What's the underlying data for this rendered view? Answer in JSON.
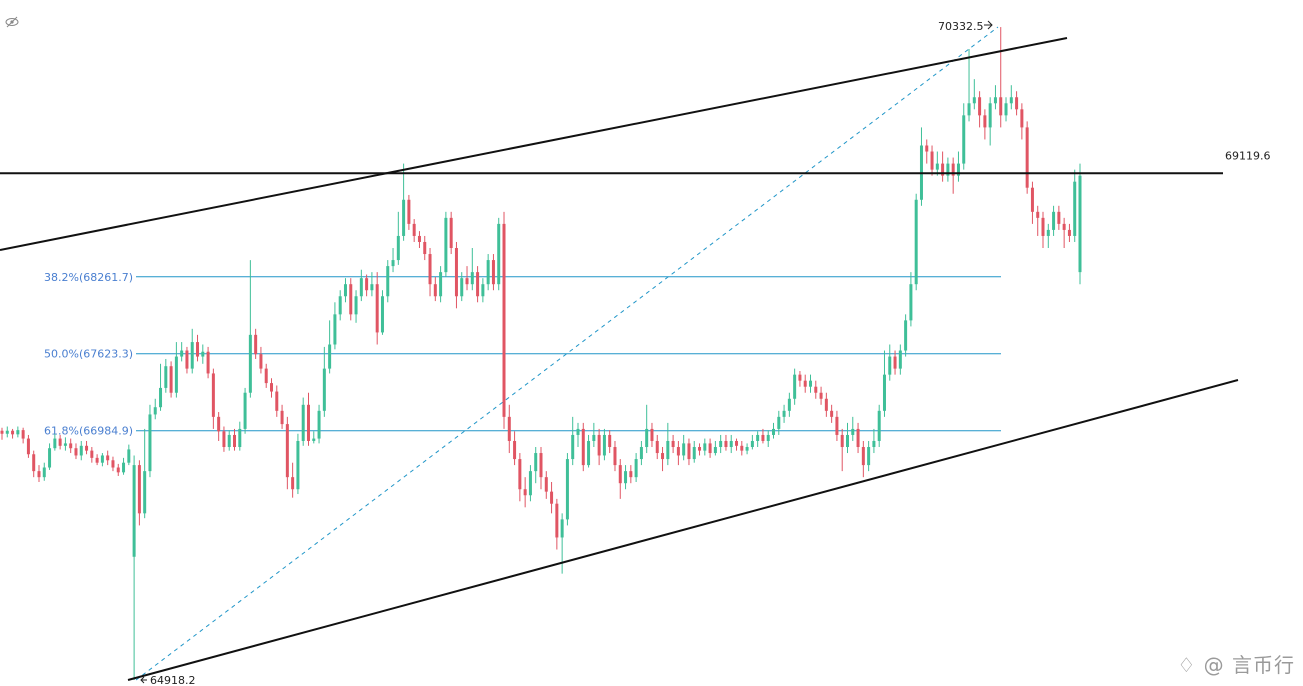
{
  "chart_data": {
    "type": "candlestick",
    "y_axis": {
      "min": 64918.2,
      "max": 70332.5,
      "unit": "USD"
    },
    "colors": {
      "up": "#3fbf98",
      "down": "#e05563",
      "fib": "#2196c8",
      "trend": "#111111",
      "dashed": "#2196c8"
    },
    "annotations": {
      "high_label": "70332.5",
      "low_label": "64918.2",
      "horizontal_level": "69119.6"
    },
    "horizontal_levels": [
      69119.6
    ],
    "fib_levels": [
      {
        "label": "38.2%(68261.7)",
        "ratio": 0.382,
        "price": 68261.7
      },
      {
        "label": "50.0%(67623.3)",
        "ratio": 0.5,
        "price": 67623.3
      },
      {
        "label": "61.8%(66984.9)",
        "ratio": 0.618,
        "price": 66984.9
      }
    ],
    "candles": [
      [
        66985,
        66960,
        67010,
        66910
      ],
      [
        66960,
        66985,
        67020,
        66930
      ],
      [
        66985,
        66955,
        67000,
        66920
      ],
      [
        66955,
        66990,
        67020,
        66930
      ],
      [
        66990,
        66920,
        67010,
        66880
      ],
      [
        66920,
        66790,
        66950,
        66760
      ],
      [
        66790,
        66650,
        66820,
        66600
      ],
      [
        66650,
        66600,
        66700,
        66560
      ],
      [
        66600,
        66680,
        66720,
        66570
      ],
      [
        66680,
        66840,
        66880,
        66660
      ],
      [
        66840,
        66920,
        66960,
        66820
      ],
      [
        66920,
        66860,
        66950,
        66830
      ],
      [
        66860,
        66880,
        66930,
        66820
      ],
      [
        66880,
        66840,
        66920,
        66800
      ],
      [
        66840,
        66780,
        66880,
        66750
      ],
      [
        66780,
        66860,
        66900,
        66740
      ],
      [
        66860,
        66820,
        66900,
        66790
      ],
      [
        66820,
        66760,
        66850,
        66720
      ],
      [
        66760,
        66720,
        66790,
        66700
      ],
      [
        66720,
        66780,
        66800,
        66690
      ],
      [
        66780,
        66740,
        66820,
        66700
      ],
      [
        66740,
        66680,
        66770,
        66650
      ],
      [
        66680,
        66640,
        66710,
        66610
      ],
      [
        66640,
        66720,
        66760,
        66620
      ],
      [
        66720,
        66830,
        66870,
        66700
      ],
      [
        65940,
        66700,
        66780,
        64918
      ],
      [
        66700,
        66300,
        66740,
        66200
      ],
      [
        66300,
        66650,
        67000,
        66260
      ],
      [
        66650,
        67120,
        67200,
        66600
      ],
      [
        67120,
        67180,
        67250,
        67080
      ],
      [
        67180,
        67340,
        67540,
        67150
      ],
      [
        67340,
        67520,
        67580,
        67300
      ],
      [
        67520,
        67300,
        67560,
        67260
      ],
      [
        67300,
        67600,
        67720,
        67260
      ],
      [
        67600,
        67650,
        67720,
        67560
      ],
      [
        67650,
        67500,
        67680,
        67460
      ],
      [
        67500,
        67720,
        67830,
        67460
      ],
      [
        67720,
        67600,
        67780,
        67560
      ],
      [
        67600,
        67640,
        67700,
        67540
      ],
      [
        67640,
        67460,
        67680,
        67420
      ],
      [
        67460,
        67100,
        67500,
        67000
      ],
      [
        67100,
        66980,
        67140,
        66900
      ],
      [
        66980,
        66850,
        67020,
        66810
      ],
      [
        66850,
        66950,
        66990,
        66820
      ],
      [
        66950,
        66850,
        67000,
        66820
      ],
      [
        66850,
        67000,
        67060,
        66820
      ],
      [
        67000,
        67300,
        67340,
        66960
      ],
      [
        67300,
        67780,
        68400,
        67260
      ],
      [
        67780,
        67620,
        67830,
        67580
      ],
      [
        67620,
        67500,
        67680,
        67460
      ],
      [
        67500,
        67380,
        67540,
        67340
      ],
      [
        67380,
        67310,
        67420,
        67260
      ],
      [
        67310,
        67150,
        67360,
        67100
      ],
      [
        67150,
        67040,
        67200,
        67000
      ],
      [
        67040,
        66600,
        67100,
        66500
      ],
      [
        66600,
        66500,
        66720,
        66430
      ],
      [
        66500,
        66900,
        66960,
        66460
      ],
      [
        66900,
        67200,
        67260,
        66860
      ],
      [
        67200,
        66900,
        67300,
        66860
      ],
      [
        66900,
        66920,
        66980,
        66880
      ],
      [
        66920,
        67150,
        67200,
        66880
      ],
      [
        67150,
        67500,
        67680,
        67100
      ],
      [
        67500,
        67700,
        67900,
        67460
      ],
      [
        67700,
        67950,
        68050,
        67660
      ],
      [
        67950,
        68100,
        68150,
        67900
      ],
      [
        68100,
        68200,
        68250,
        68050
      ],
      [
        68200,
        67950,
        68250,
        67900
      ],
      [
        67950,
        68100,
        68150,
        67880
      ],
      [
        68100,
        68250,
        68320,
        68060
      ],
      [
        68250,
        68150,
        68280,
        68100
      ],
      [
        68150,
        68200,
        68300,
        68100
      ],
      [
        68200,
        67800,
        68300,
        67700
      ],
      [
        67800,
        68100,
        68150,
        67780
      ],
      [
        68100,
        68350,
        68400,
        68050
      ],
      [
        68350,
        68400,
        68500,
        68300
      ],
      [
        68400,
        68600,
        68800,
        68360
      ],
      [
        68600,
        68900,
        69200,
        68560
      ],
      [
        68900,
        68700,
        68940,
        68650
      ],
      [
        68700,
        68600,
        68740,
        68550
      ],
      [
        68600,
        68550,
        68640,
        68500
      ],
      [
        68550,
        68450,
        68600,
        68400
      ],
      [
        68450,
        68200,
        68500,
        68100
      ],
      [
        68200,
        68100,
        68260,
        68060
      ],
      [
        68100,
        68300,
        68350,
        68050
      ],
      [
        68300,
        68750,
        68800,
        68260
      ],
      [
        68750,
        68500,
        68800,
        68450
      ],
      [
        68500,
        68100,
        68550,
        68000
      ],
      [
        68100,
        68250,
        68300,
        68060
      ],
      [
        68250,
        68200,
        68350,
        68150
      ],
      [
        68200,
        68300,
        68500,
        68150
      ],
      [
        68300,
        68100,
        68350,
        68050
      ],
      [
        68100,
        68200,
        68250,
        68050
      ],
      [
        68200,
        68400,
        68450,
        68150
      ],
      [
        68400,
        68200,
        68450,
        68150
      ],
      [
        68200,
        68700,
        68750,
        68150
      ],
      [
        68700,
        67100,
        68800,
        67000
      ],
      [
        67100,
        66900,
        67200,
        66800
      ],
      [
        66900,
        66750,
        66980,
        66700
      ],
      [
        66750,
        66500,
        66800,
        66400
      ],
      [
        66500,
        66450,
        66600,
        66350
      ],
      [
        66450,
        66650,
        66700,
        66400
      ],
      [
        66650,
        66800,
        66850,
        66550
      ],
      [
        66800,
        66600,
        66850,
        66500
      ],
      [
        66600,
        66480,
        66650,
        66420
      ],
      [
        66480,
        66380,
        66560,
        66300
      ],
      [
        66380,
        66100,
        66420,
        66000
      ],
      [
        66100,
        66250,
        66300,
        65800
      ],
      [
        66250,
        66750,
        66800,
        66200
      ],
      [
        66750,
        66950,
        67100,
        66700
      ],
      [
        66950,
        67000,
        67050,
        66850
      ],
      [
        67000,
        66700,
        67050,
        66650
      ],
      [
        66700,
        66900,
        66950,
        66680
      ],
      [
        66900,
        66950,
        67050,
        66850
      ],
      [
        66950,
        66780,
        67000,
        66700
      ],
      [
        66780,
        66950,
        67000,
        66740
      ],
      [
        66950,
        66850,
        66990,
        66800
      ],
      [
        66850,
        66700,
        66900,
        66650
      ],
      [
        66700,
        66550,
        66750,
        66420
      ],
      [
        66550,
        66650,
        66700,
        66500
      ],
      [
        66650,
        66600,
        66700,
        66550
      ],
      [
        66600,
        66750,
        66800,
        66560
      ],
      [
        66750,
        66850,
        66900,
        66700
      ],
      [
        66850,
        67000,
        67200,
        66800
      ],
      [
        67000,
        66900,
        67050,
        66850
      ],
      [
        66900,
        66800,
        66950,
        66750
      ],
      [
        66800,
        66750,
        66850,
        66650
      ],
      [
        66750,
        66900,
        67050,
        66700
      ],
      [
        66900,
        66850,
        66950,
        66800
      ],
      [
        66850,
        66780,
        66900,
        66700
      ],
      [
        66780,
        66880,
        66950,
        66740
      ],
      [
        66880,
        66750,
        66920,
        66700
      ],
      [
        66750,
        66850,
        66900,
        66720
      ],
      [
        66850,
        66820,
        66880,
        66780
      ],
      [
        66820,
        66880,
        66920,
        66780
      ],
      [
        66880,
        66800,
        66920,
        66760
      ],
      [
        66800,
        66850,
        66900,
        66780
      ],
      [
        66850,
        66900,
        66950,
        66800
      ],
      [
        66900,
        66850,
        66950,
        66820
      ],
      [
        66850,
        66900,
        66950,
        66800
      ],
      [
        66900,
        66860,
        66920,
        66820
      ],
      [
        66860,
        66820,
        66900,
        66780
      ],
      [
        66820,
        66850,
        66880,
        66790
      ],
      [
        66850,
        66900,
        66950,
        66830
      ],
      [
        66900,
        66950,
        66980,
        66850
      ],
      [
        66950,
        66900,
        67000,
        66880
      ],
      [
        66900,
        66950,
        66990,
        66850
      ],
      [
        66950,
        67000,
        67050,
        66920
      ],
      [
        67000,
        67100,
        67150,
        66950
      ],
      [
        67100,
        67150,
        67200,
        67050
      ],
      [
        67150,
        67250,
        67300,
        67100
      ],
      [
        67250,
        67450,
        67500,
        67200
      ],
      [
        67450,
        67400,
        67480,
        67350
      ],
      [
        67400,
        67350,
        67450,
        67300
      ],
      [
        67350,
        67400,
        67450,
        67300
      ],
      [
        67350,
        67300,
        67400,
        67250
      ],
      [
        67300,
        67250,
        67350,
        67200
      ],
      [
        67250,
        67150,
        67300,
        67100
      ],
      [
        67150,
        67100,
        67200,
        67050
      ],
      [
        67100,
        66950,
        67150,
        66900
      ],
      [
        66950,
        66850,
        67000,
        66650
      ],
      [
        66850,
        66950,
        67050,
        66800
      ],
      [
        66950,
        67000,
        67100,
        66900
      ],
      [
        67000,
        66850,
        67050,
        66800
      ],
      [
        66850,
        66700,
        66900,
        66600
      ],
      [
        66700,
        66850,
        66900,
        66650
      ],
      [
        66850,
        66900,
        67000,
        66800
      ],
      [
        66900,
        67150,
        67200,
        66850
      ],
      [
        67150,
        67450,
        67650,
        67100
      ],
      [
        67450,
        67600,
        67700,
        67400
      ],
      [
        67600,
        67500,
        67650,
        67450
      ],
      [
        67500,
        67650,
        67700,
        67450
      ],
      [
        67650,
        67900,
        67950,
        67600
      ],
      [
        67900,
        68200,
        68300,
        67850
      ],
      [
        68200,
        68900,
        68950,
        68150
      ],
      [
        68900,
        69350,
        69500,
        68850
      ],
      [
        69350,
        69300,
        69400,
        69200
      ],
      [
        69300,
        69150,
        69350,
        69100
      ],
      [
        69150,
        69200,
        69300,
        69100
      ],
      [
        69200,
        69100,
        69300,
        69050
      ],
      [
        69100,
        69200,
        69250,
        69050
      ],
      [
        69200,
        69100,
        69250,
        68950
      ],
      [
        69100,
        69200,
        69300,
        69050
      ],
      [
        69200,
        69600,
        69700,
        69150
      ],
      [
        69600,
        69700,
        70150,
        69550
      ],
      [
        69700,
        69750,
        69900,
        69650
      ],
      [
        69750,
        69600,
        69800,
        69500
      ],
      [
        69600,
        69500,
        69650,
        69400
      ],
      [
        69500,
        69700,
        69750,
        69350
      ],
      [
        69700,
        69750,
        69850,
        69650
      ],
      [
        69750,
        69600,
        70332,
        69500
      ],
      [
        69600,
        69700,
        69750,
        69550
      ],
      [
        69700,
        69750,
        69850,
        69650
      ],
      [
        69750,
        69650,
        69800,
        69600
      ],
      [
        69650,
        69500,
        69700,
        69400
      ],
      [
        69500,
        69000,
        69550,
        68950
      ],
      [
        69000,
        68800,
        69050,
        68700
      ],
      [
        68800,
        68750,
        68850,
        68600
      ],
      [
        68750,
        68600,
        68800,
        68500
      ],
      [
        68600,
        68650,
        68700,
        68500
      ],
      [
        68650,
        68800,
        68850,
        68600
      ],
      [
        68800,
        68700,
        68850,
        68650
      ],
      [
        68700,
        68650,
        68750,
        68500
      ],
      [
        68650,
        68600,
        68700,
        68550
      ],
      [
        68600,
        69050,
        69150,
        68550
      ],
      [
        68300,
        69100,
        69200,
        68200
      ]
    ]
  }
}
